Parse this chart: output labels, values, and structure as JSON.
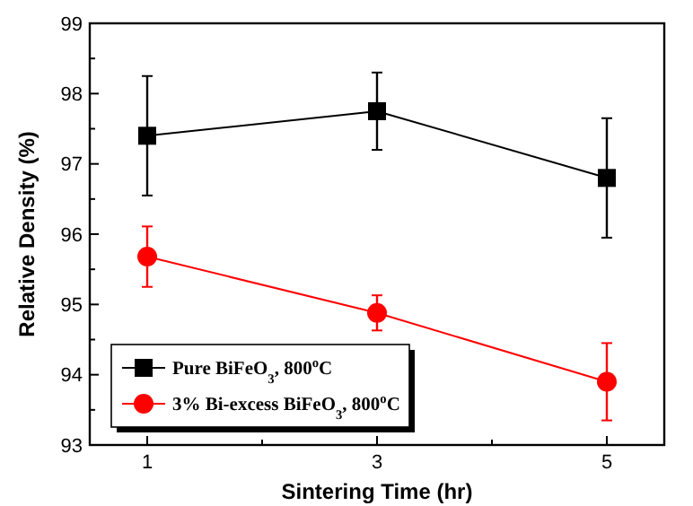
{
  "chart_data": {
    "type": "line",
    "xlabel": "Sintering Time (hr)",
    "ylabel": "Relative Density (%)",
    "x": [
      1,
      3,
      5
    ],
    "series": [
      {
        "name": "Pure BiFeO$_{3}$, 800$^{o}$C",
        "color": "#000000",
        "marker": "square",
        "values": [
          97.4,
          97.75,
          96.8
        ],
        "errors": [
          0.85,
          0.55,
          0.85
        ]
      },
      {
        "name": "3% Bi-excess BiFeO$_{3}$, 800$^{o}$C",
        "color": "#ff0000",
        "marker": "circle",
        "values": [
          95.68,
          94.88,
          93.9
        ],
        "errors": [
          0.43,
          0.25,
          0.55
        ]
      }
    ],
    "xlim": [
      0.5,
      5.5
    ],
    "xticks": [
      1,
      {
        "value": 2,
        "label": null
      },
      3,
      {
        "value": 4,
        "label": null
      },
      5
    ],
    "ylim": [
      93,
      99
    ],
    "yticks": [
      93,
      {
        "value": 93.5,
        "label": null
      },
      94,
      {
        "value": 94.5,
        "label": null
      },
      95,
      {
        "value": 95.5,
        "label": null
      },
      96,
      {
        "value": 96.5,
        "label": null
      },
      97,
      {
        "value": 97.5,
        "label": null
      },
      98,
      {
        "value": 98.5,
        "label": null
      },
      99
    ],
    "legend": "bottom left",
    "grid": false
  }
}
